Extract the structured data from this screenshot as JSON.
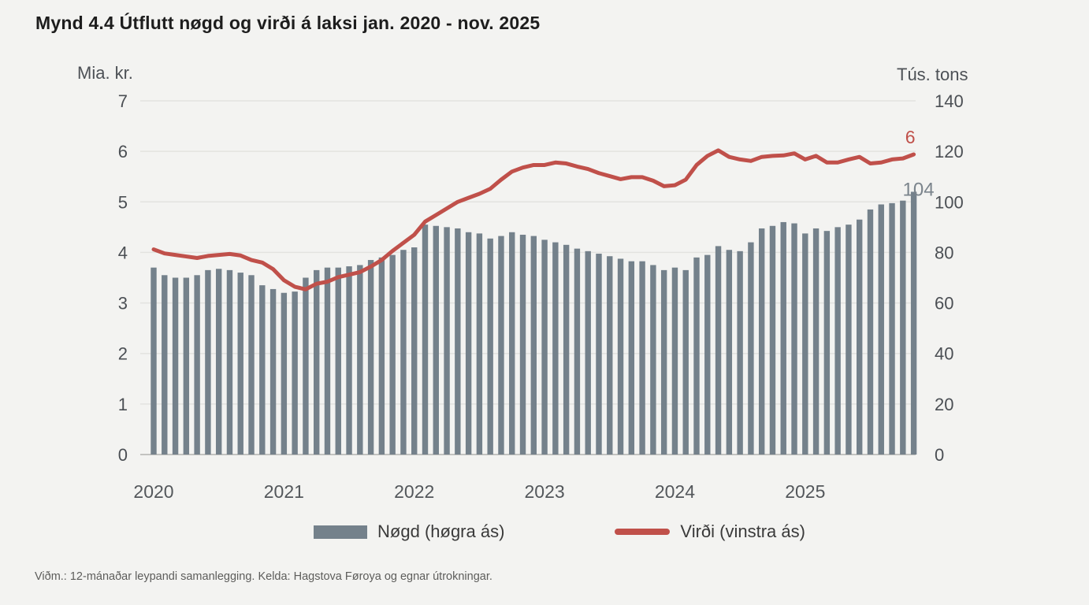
{
  "title": "Mynd 4.4 Útflutt nøgd og virði á laksi jan. 2020 - nov. 2025",
  "footnote": "Viðm.: 12-mánaðar leypandi samanlegging. Kelda: Hagstova Føroya og egnar útrokningar.",
  "chart_data": {
    "type": "bar+line",
    "x_start": "2020-01",
    "x_end": "2025-11",
    "x_axis": {
      "labels": [
        "2020",
        "2021",
        "2022",
        "2023",
        "2024",
        "2025"
      ],
      "label_month_indices": [
        0,
        12,
        24,
        36,
        48,
        60
      ]
    },
    "left_axis": {
      "unit": "Mia. kr.",
      "ticks": [
        0,
        1,
        2,
        3,
        4,
        5,
        6,
        7
      ],
      "max": 7
    },
    "right_axis": {
      "unit": "Tús. tons",
      "ticks": [
        0,
        20,
        40,
        60,
        80,
        100,
        120,
        140
      ],
      "max": 140
    },
    "series": [
      {
        "name": "Nøgd (høgra ás)",
        "type": "bar",
        "axis": "right",
        "end_label": "104",
        "values": [
          74,
          71,
          70,
          70,
          71,
          73,
          73.5,
          73,
          72,
          71,
          67,
          65.5,
          64,
          64.5,
          70,
          73,
          74,
          74,
          74.5,
          75,
          77,
          78,
          79,
          81,
          82,
          91,
          90.5,
          90,
          89.5,
          88,
          87.5,
          85.5,
          86.5,
          88,
          87,
          86.5,
          85,
          84,
          83,
          81.5,
          80.5,
          79.5,
          78.5,
          77.5,
          76.5,
          76.5,
          75,
          73,
          74,
          73,
          78,
          79,
          82.5,
          81,
          80.5,
          84,
          89.5,
          90.5,
          92,
          91.5,
          87.5,
          89.5,
          88.5,
          90,
          91,
          93,
          97,
          99,
          99.5,
          100.5,
          104
        ]
      },
      {
        "name": "Virði (vinstra ás)",
        "type": "line",
        "axis": "left",
        "end_label": "6",
        "values": [
          4.06,
          3.98,
          3.95,
          3.92,
          3.89,
          3.93,
          3.95,
          3.97,
          3.94,
          3.85,
          3.8,
          3.67,
          3.45,
          3.32,
          3.27,
          3.38,
          3.42,
          3.51,
          3.56,
          3.61,
          3.72,
          3.85,
          4.03,
          4.19,
          4.35,
          4.61,
          4.74,
          4.87,
          5.0,
          5.08,
          5.16,
          5.26,
          5.44,
          5.6,
          5.68,
          5.73,
          5.73,
          5.78,
          5.76,
          5.7,
          5.65,
          5.57,
          5.51,
          5.45,
          5.49,
          5.49,
          5.42,
          5.31,
          5.33,
          5.44,
          5.73,
          5.91,
          6.02,
          5.89,
          5.84,
          5.81,
          5.89,
          5.91,
          5.92,
          5.96,
          5.84,
          5.91,
          5.78,
          5.78,
          5.84,
          5.89,
          5.76,
          5.78,
          5.84,
          5.86,
          5.94
        ]
      }
    ],
    "colors": {
      "bars": "#74818b",
      "line": "#c0504a",
      "grid": "#e3e3e0",
      "baseline": "#b3b3b0",
      "tick_text": "#4b4f54",
      "year_text": "#53575b",
      "line_label": "#c0504a",
      "bar_label": "#7b848c"
    },
    "grid": true,
    "legend_position": "bottom"
  }
}
